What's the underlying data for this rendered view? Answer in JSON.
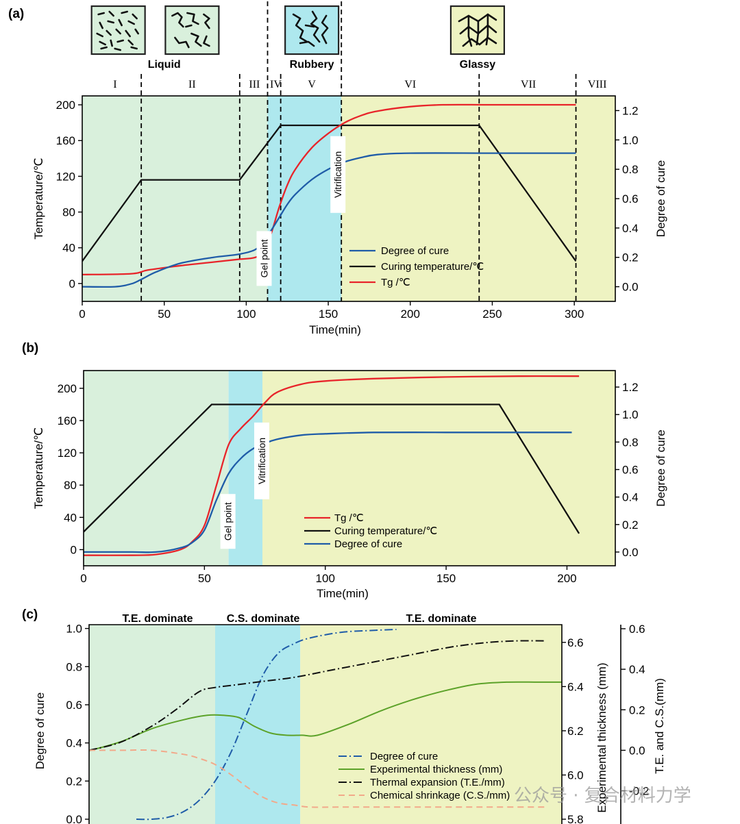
{
  "watermark": "公众号 · 复合材料力学",
  "colors": {
    "liquid": "#d9f0dc",
    "rubbery": "#aee8ee",
    "glassy": "#eef3c2",
    "red": "#e8242a",
    "blue": "#1f5ca8",
    "black": "#111111",
    "green": "#5ca229",
    "orange": "#f2a98a"
  },
  "chart_data": [
    {
      "id": "a",
      "type": "line",
      "panel_label": "(a)",
      "xlabel": "Time(min)",
      "ylabel": "Temperature/℃",
      "y2label": "Degree of cure",
      "xlim": [
        0,
        325
      ],
      "ylim": [
        -20,
        210
      ],
      "y2lim": [
        -0.1,
        1.3
      ],
      "xticks": [
        0,
        50,
        100,
        150,
        200,
        250,
        300
      ],
      "yticks": [
        0,
        40,
        80,
        120,
        160,
        200
      ],
      "y2ticks": [
        0.0,
        0.2,
        0.4,
        0.6,
        0.8,
        1.0,
        1.2
      ],
      "y2tick_labels": [
        "0.0",
        "0.2",
        "0.4",
        "0.6",
        "0.8",
        "1.0",
        "1.2"
      ],
      "regions": [
        {
          "from": 0,
          "to": 113,
          "kind": "liquid"
        },
        {
          "from": 113,
          "to": 158,
          "kind": "rubbery"
        },
        {
          "from": 158,
          "to": 325,
          "kind": "glassy"
        }
      ],
      "stages": [
        {
          "label": "I",
          "x": 20
        },
        {
          "label": "II",
          "x": 67
        },
        {
          "label": "III",
          "x": 105
        },
        {
          "label": "IV",
          "x": 118
        },
        {
          "label": "V",
          "x": 140
        },
        {
          "label": "VI",
          "x": 200
        },
        {
          "label": "VII",
          "x": 272
        },
        {
          "label": "VIII",
          "x": 314
        }
      ],
      "dividers": [
        36,
        96,
        113,
        121,
        158,
        242,
        301
      ],
      "phase_labels": [
        {
          "text": "Liquid",
          "x": 50
        },
        {
          "text": "Rubbery",
          "x": 140
        },
        {
          "text": "Glassy",
          "x": 241
        }
      ],
      "annotations": [
        {
          "text": "Gel point",
          "x": 113,
          "y": 28
        },
        {
          "text": "Vitrification",
          "x": 158,
          "y": 122
        }
      ],
      "legend": [
        "Degree of cure",
        "Curing temperature/℃",
        "Tg /℃"
      ],
      "series": [
        {
          "name": "Curing temperature/℃",
          "axis": "left",
          "color": "black",
          "x": [
            0,
            36,
            96,
            121,
            242,
            301
          ],
          "y": [
            25,
            116,
            116,
            177,
            177,
            25
          ]
        },
        {
          "name": "Tg /℃",
          "axis": "left",
          "color": "red",
          "x": [
            0,
            30,
            40,
            60,
            80,
            95,
            105,
            110,
            115,
            120,
            125,
            130,
            140,
            150,
            160,
            170,
            180,
            200,
            220,
            250,
            301
          ],
          "y": [
            10,
            11,
            15,
            20,
            24,
            27,
            29,
            35,
            55,
            85,
            110,
            128,
            152,
            168,
            180,
            188,
            193,
            198,
            200,
            200,
            200
          ]
        },
        {
          "name": "Degree of cure",
          "axis": "right",
          "color": "blue",
          "x": [
            0,
            20,
            30,
            36,
            45,
            60,
            80,
            95,
            105,
            110,
            115,
            120,
            125,
            130,
            140,
            150,
            160,
            170,
            180,
            200,
            250,
            301
          ],
          "y": [
            0.0,
            0.0,
            0.02,
            0.05,
            0.1,
            0.16,
            0.2,
            0.22,
            0.25,
            0.3,
            0.38,
            0.47,
            0.56,
            0.63,
            0.73,
            0.8,
            0.85,
            0.88,
            0.9,
            0.91,
            0.91,
            0.91
          ]
        }
      ],
      "schematics": [
        {
          "kind": "liquid-short",
          "x": 22
        },
        {
          "kind": "liquid-long",
          "x": 67
        },
        {
          "kind": "rubbery",
          "x": 140
        },
        {
          "kind": "glassy",
          "x": 241
        }
      ]
    },
    {
      "id": "b",
      "type": "line",
      "panel_label": "(b)",
      "xlabel": "Time(min)",
      "ylabel": "Temperature/℃",
      "y2label": "Degree of cure",
      "xlim": [
        0,
        220
      ],
      "ylim": [
        -20,
        222
      ],
      "y2lim": [
        -0.1,
        1.32
      ],
      "xticks": [
        0,
        50,
        100,
        150,
        200
      ],
      "yticks": [
        0,
        40,
        80,
        120,
        160,
        200
      ],
      "y2ticks": [
        0.0,
        0.2,
        0.4,
        0.6,
        0.8,
        1.0,
        1.2
      ],
      "y2tick_labels": [
        "0.0",
        "0.2",
        "0.4",
        "0.6",
        "0.8",
        "1.0",
        "1.2"
      ],
      "regions": [
        {
          "from": 0,
          "to": 60,
          "kind": "liquid"
        },
        {
          "from": 60,
          "to": 74,
          "kind": "rubbery"
        },
        {
          "from": 74,
          "to": 220,
          "kind": "glassy"
        }
      ],
      "annotations": [
        {
          "text": "Gel point",
          "x": 60,
          "y": 35
        },
        {
          "text": "Vitrification",
          "x": 74,
          "y": 110
        }
      ],
      "legend": [
        "Tg /℃",
        "Curing temperature/℃",
        "Degree of cure"
      ],
      "series": [
        {
          "name": "Curing temperature/℃",
          "axis": "left",
          "color": "black",
          "x": [
            0,
            53,
            172,
            205
          ],
          "y": [
            22,
            180,
            180,
            20
          ]
        },
        {
          "name": "Tg /℃",
          "axis": "left",
          "color": "red",
          "x": [
            0,
            20,
            30,
            40,
            45,
            50,
            55,
            60,
            65,
            70,
            75,
            80,
            90,
            100,
            120,
            150,
            180,
            205
          ],
          "y": [
            -7,
            -7,
            -6,
            0,
            10,
            30,
            80,
            130,
            150,
            165,
            182,
            195,
            205,
            209,
            212,
            214,
            215,
            215
          ]
        },
        {
          "name": "Degree of cure",
          "axis": "right",
          "color": "blue",
          "x": [
            0,
            20,
            30,
            40,
            45,
            50,
            55,
            60,
            65,
            70,
            75,
            80,
            90,
            100,
            120,
            150,
            175,
            202
          ],
          "y": [
            0.0,
            0.0,
            0.0,
            0.03,
            0.07,
            0.16,
            0.38,
            0.57,
            0.68,
            0.75,
            0.79,
            0.82,
            0.85,
            0.86,
            0.87,
            0.87,
            0.87,
            0.87
          ]
        }
      ]
    },
    {
      "id": "c",
      "type": "line",
      "panel_label": "(c)",
      "ylabel": "Degree of cure",
      "y2label": "Experimental thickness (mm)",
      "y3label": "T.E. and C.S.(mm)",
      "xlim": [
        0,
        300
      ],
      "ylim": [
        0.0,
        1.02
      ],
      "y2lim": [
        5.8,
        6.68
      ],
      "y3lim": [
        -0.34,
        0.62
      ],
      "yticks": [
        0.0,
        0.2,
        0.4,
        0.6,
        0.8,
        1.0
      ],
      "ytick_labels": [
        "0.0",
        "0.2",
        "0.4",
        "0.6",
        "0.8",
        "1.0"
      ],
      "y2ticks": [
        5.8,
        6.0,
        6.2,
        6.4,
        6.6
      ],
      "y2tick_labels": [
        "5.8",
        "6.0",
        "6.2",
        "6.4",
        "6.6"
      ],
      "y3ticks": [
        -0.2,
        0.0,
        0.2,
        0.4,
        0.6
      ],
      "y3tick_labels": [
        "-0.2",
        "0.0",
        "0.2",
        "0.4",
        "0.6"
      ],
      "regions": [
        {
          "from": 0,
          "to": 80,
          "kind": "liquid"
        },
        {
          "from": 80,
          "to": 134,
          "kind": "rubbery"
        },
        {
          "from": 134,
          "to": 300,
          "kind": "glassy"
        }
      ],
      "dominance_labels": [
        {
          "text": "T.E. dominate",
          "x": 40
        },
        {
          "text": "C.S. dominate",
          "x": 107
        },
        {
          "text": "T.E. dominate",
          "x": 220
        }
      ],
      "legend": [
        "Degree of cure",
        "Experimental thickness (mm)",
        "Thermal expansion (T.E./mm)",
        "Chemical shrinkage (C.S./mm)"
      ],
      "series": [
        {
          "name": "Degree of cure",
          "axis": "left",
          "color": "blue",
          "style": "dashdot",
          "x": [
            30,
            40,
            50,
            60,
            70,
            80,
            90,
            100,
            110,
            120,
            130,
            140,
            160,
            180,
            195
          ],
          "y": [
            0.0,
            0.0,
            0.01,
            0.04,
            0.1,
            0.2,
            0.35,
            0.55,
            0.75,
            0.87,
            0.92,
            0.95,
            0.98,
            0.99,
            0.995
          ]
        },
        {
          "name": "Experimental thickness (mm)",
          "axis": "right",
          "color": "green",
          "style": "solid",
          "x": [
            0,
            20,
            40,
            60,
            75,
            85,
            95,
            105,
            115,
            125,
            135,
            145,
            165,
            185,
            205,
            225,
            245,
            265,
            285,
            300
          ],
          "y": [
            6.11,
            6.15,
            6.21,
            6.25,
            6.27,
            6.27,
            6.26,
            6.22,
            6.19,
            6.18,
            6.18,
            6.18,
            6.23,
            6.29,
            6.34,
            6.38,
            6.41,
            6.42,
            6.42,
            6.42
          ]
        },
        {
          "name": "Thermal expansion (T.E./mm)",
          "axis": "right2",
          "color": "black",
          "style": "dashdot",
          "x": [
            0,
            20,
            40,
            55,
            70,
            80,
            90,
            110,
            130,
            150,
            170,
            190,
            210,
            230,
            250,
            270,
            290
          ],
          "y": [
            0.0,
            0.04,
            0.12,
            0.2,
            0.29,
            0.31,
            0.32,
            0.34,
            0.36,
            0.39,
            0.42,
            0.45,
            0.48,
            0.51,
            0.53,
            0.54,
            0.54
          ]
        },
        {
          "name": "Chemical shrinkage (C.S./mm)",
          "axis": "right2",
          "color": "orange",
          "style": "dashed",
          "x": [
            0,
            20,
            40,
            60,
            70,
            80,
            90,
            100,
            110,
            120,
            130,
            140,
            160,
            200,
            250,
            290
          ],
          "y": [
            0.0,
            0.0,
            0.0,
            -0.02,
            -0.04,
            -0.07,
            -0.12,
            -0.18,
            -0.23,
            -0.26,
            -0.27,
            -0.28,
            -0.28,
            -0.28,
            -0.28,
            -0.28
          ]
        }
      ]
    }
  ]
}
